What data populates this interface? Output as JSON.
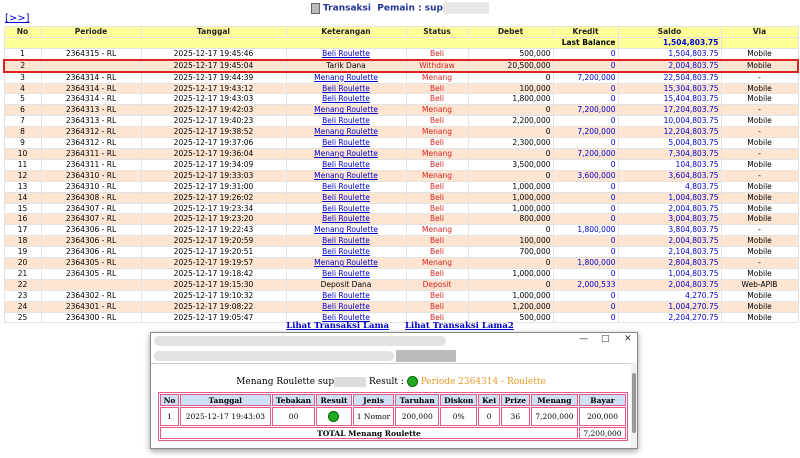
{
  "header": {
    "link": "[>>]",
    "title_label": "Transaksi",
    "title_player": "Pemain : sup"
  },
  "table": {
    "columns": [
      "No",
      "Periode",
      "Tanggal",
      "Keterangan",
      "Status",
      "Debet",
      "Kredit",
      "Saldo",
      "Via"
    ],
    "last_balance_label": "Last Balance",
    "last_balance": "1,504,803.75",
    "rows": [
      [
        "1",
        "2364315 - RL",
        "2025-12-17 19:45:46",
        "Beli Roulette",
        "Beli",
        "500,000",
        "0",
        "1,504,803.75",
        "Mobile"
      ],
      [
        "2",
        null,
        "2025-12-17 19:45:04",
        "Tarik Dana",
        "Withdraw",
        "20,500,000",
        "0",
        "2,004,803.75",
        "Mobile"
      ],
      [
        "3",
        "2364314 - RL",
        "2025-12-17 19:44:39",
        "Menang Roulette",
        "Menang",
        "0",
        "7,200,000",
        "22,504,803.75",
        "-"
      ],
      [
        "4",
        "2364314 - RL",
        "2025-12-17 19:43:12",
        "Beli Roulette",
        "Beli",
        "100,000",
        "0",
        "15,304,803.75",
        "Mobile"
      ],
      [
        "5",
        "2364314 - RL",
        "2025-12-17 19:43:03",
        "Beli Roulette",
        "Beli",
        "1,800,000",
        "0",
        "15,404,803.75",
        "Mobile"
      ],
      [
        "6",
        "2364313 - RL",
        "2025-12-17 19:42:03",
        "Menang Roulette",
        "Menang",
        "0",
        "7,200,000",
        "17,204,803.75",
        "-"
      ],
      [
        "7",
        "2364313 - RL",
        "2025-12-17 19:40:23",
        "Beli Roulette",
        "Beli",
        "2,200,000",
        "0",
        "10,004,803.75",
        "Mobile"
      ],
      [
        "8",
        "2364312 - RL",
        "2025-12-17 19:38:52",
        "Menang Roulette",
        "Menang",
        "0",
        "7,200,000",
        "12,204,803.75",
        "-"
      ],
      [
        "9",
        "2364312 - RL",
        "2025-12-17 19:37:06",
        "Beli Roulette",
        "Beli",
        "2,300,000",
        "0",
        "5,004,803.75",
        "Mobile"
      ],
      [
        "10",
        "2364311 - RL",
        "2025-12-17 19:36:04",
        "Menang Roulette",
        "Menang",
        "0",
        "7,200,000",
        "7,304,803.75",
        "-"
      ],
      [
        "11",
        "2364311 - RL",
        "2025-12-17 19:34:09",
        "Beli Roulette",
        "Beli",
        "3,500,000",
        "0",
        "104,803.75",
        "Mobile"
      ],
      [
        "12",
        "2364310 - RL",
        "2025-12-17 19:33:03",
        "Menang Roulette",
        "Menang",
        "0",
        "3,600,000",
        "3,604,803.75",
        "-"
      ],
      [
        "13",
        "2364310 - RL",
        "2025-12-17 19:31:00",
        "Beli Roulette",
        "Beli",
        "1,000,000",
        "0",
        "4,803.75",
        "Mobile"
      ],
      [
        "14",
        "2364308 - RL",
        "2025-12-17 19:26:02",
        "Beli Roulette",
        "Beli",
        "1,000,000",
        "0",
        "1,004,803.75",
        "Mobile"
      ],
      [
        "15",
        "2364307 - RL",
        "2025-12-17 19:23:34",
        "Beli Roulette",
        "Beli",
        "1,000,000",
        "0",
        "2,004,803.75",
        "Mobile"
      ],
      [
        "16",
        "2364307 - RL",
        "2025-12-17 19:23:20",
        "Beli Roulette",
        "Beli",
        "800,000",
        "0",
        "3,004,803.75",
        "Mobile"
      ],
      [
        "17",
        "2364306 - RL",
        "2025-12-17 19:22:43",
        "Menang Roulette",
        "Menang",
        "0",
        "1,800,000",
        "3,804,803.75",
        "-"
      ],
      [
        "18",
        "2364306 - RL",
        "2025-12-17 19:20:59",
        "Beli Roulette",
        "Beli",
        "100,000",
        "0",
        "2,004,803.75",
        "Mobile"
      ],
      [
        "19",
        "2364306 - RL",
        "2025-12-17 19:20:51",
        "Beli Roulette",
        "Beli",
        "700,000",
        "0",
        "2,104,803.75",
        "Mobile"
      ],
      [
        "20",
        "2364305 - RL",
        "2025-12-17 19:19:57",
        "Menang Roulette",
        "Menang",
        "0",
        "1,800,000",
        "2,804,803.75",
        "-"
      ],
      [
        "21",
        "2364305 - RL",
        "2025-12-17 19:18:42",
        "Beli Roulette",
        "Beli",
        "1,000,000",
        "0",
        "1,004,803.75",
        "Mobile"
      ],
      [
        "22",
        null,
        "2025-12-17 19:15:30",
        "Deposit Dana",
        "Deposit",
        "0",
        "2,000,533",
        "2,004,803.75",
        "Web-APIB"
      ],
      [
        "23",
        "2364302 - RL",
        "2025-12-17 19:10:32",
        "Beli Roulette",
        "Beli",
        "1,000,000",
        "0",
        "4,270.75",
        "Mobile"
      ],
      [
        "24",
        "2364301 - RL",
        "2025-12-17 19:08:22",
        "Beli Roulette",
        "Beli",
        "1,200,000",
        "0",
        "1,004,270.75",
        "Mobile"
      ],
      [
        "25",
        "2364300 - RL",
        "2025-12-17 19:05:47",
        "Beli Roulette",
        "Beli",
        "500,000",
        "0",
        "2,204,270.75",
        "Mobile"
      ]
    ]
  },
  "links": [
    "Lihat Transaksi Lama",
    "Lihat Transaksi Lama2"
  ],
  "popup": {
    "heading": "Menang Roulette sup",
    "result_label": "Result :",
    "periode": "Periode 2364314 - Roulette",
    "columns": [
      "No",
      "Tanggal",
      "Tebakan",
      "Result",
      "Jenis",
      "Taruhan",
      "Diskon",
      "Kei",
      "Prize",
      "Menang",
      "Bayar"
    ],
    "rows": [
      [
        "1",
        "2025-12-17 19:43:03",
        "00",
        null,
        "1 Nomor",
        "200,000",
        "0%",
        "0",
        "36",
        "7,200,000",
        "200,000"
      ]
    ],
    "total_label": "TOTAL  Menang Roulette",
    "total": "7,200,000"
  }
}
